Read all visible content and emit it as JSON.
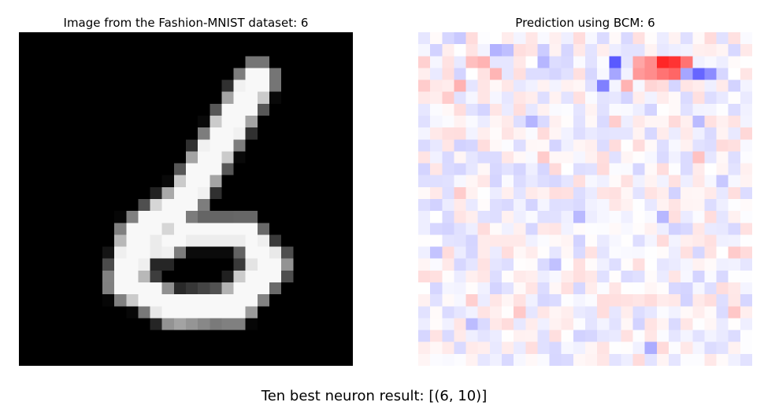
{
  "left_panel": {
    "title": "Image from the Fashion-MNIST dataset: 6",
    "image_size": 28,
    "colormap": "gray",
    "strokes": [
      {
        "from": [
          20,
          4
        ],
        "to": [
          14,
          14
        ],
        "w": 1.55
      },
      {
        "from": [
          14,
          14
        ],
        "to": [
          10,
          17
        ],
        "w": 1.5
      },
      {
        "from": [
          10,
          17
        ],
        "to": [
          9,
          21
        ],
        "w": 1.6
      },
      {
        "from": [
          9,
          21
        ],
        "to": [
          13,
          23.3
        ],
        "w": 1.4
      },
      {
        "from": [
          13,
          23.3
        ],
        "to": [
          18,
          23
        ],
        "w": 1.4
      },
      {
        "from": [
          18,
          23
        ],
        "to": [
          21,
          19.5
        ],
        "w": 1.6
      },
      {
        "from": [
          21,
          19.5
        ],
        "to": [
          19,
          16.8
        ],
        "w": 1.3
      },
      {
        "from": [
          19,
          16.8
        ],
        "to": [
          14,
          16.8
        ],
        "w": 1.2
      },
      {
        "from": [
          14,
          16.8
        ],
        "to": [
          12,
          18
        ],
        "w": 1.2
      }
    ],
    "hole": {
      "cx": 14.5,
      "cy": 19.7,
      "rx": 3.0,
      "ry": 1.4
    }
  },
  "right_panel": {
    "title": "Prediction using BCM: 6",
    "grid_size": 28,
    "colormap": "bwr",
    "noise_seed": 7,
    "hotspots": [
      {
        "x": 20,
        "y": 2,
        "v": 0.85
      },
      {
        "x": 21,
        "y": 2,
        "v": 0.8
      },
      {
        "x": 20,
        "y": 3,
        "v": 0.55
      },
      {
        "x": 21,
        "y": 3,
        "v": 0.6
      },
      {
        "x": 22,
        "y": 2,
        "v": 0.55
      },
      {
        "x": 19,
        "y": 2,
        "v": 0.45
      },
      {
        "x": 18,
        "y": 3,
        "v": 0.4
      },
      {
        "x": 19,
        "y": 3,
        "v": 0.45
      },
      {
        "x": 18,
        "y": 2,
        "v": 0.35
      },
      {
        "x": 17,
        "y": 4,
        "v": 0.3
      },
      {
        "x": 16,
        "y": 2,
        "v": -0.65
      },
      {
        "x": 16,
        "y": 3,
        "v": -0.35
      },
      {
        "x": 15,
        "y": 4,
        "v": -0.5
      },
      {
        "x": 23,
        "y": 3,
        "v": -0.6
      },
      {
        "x": 24,
        "y": 3,
        "v": -0.45
      },
      {
        "x": 22,
        "y": 3,
        "v": -0.35
      },
      {
        "x": 5,
        "y": 2,
        "v": 0.3
      },
      {
        "x": 4,
        "y": 2,
        "v": 0.25
      },
      {
        "x": 0,
        "y": 4,
        "v": 0.2
      },
      {
        "x": 2,
        "y": 5,
        "v": 0.2
      },
      {
        "x": 6,
        "y": 1,
        "v": -0.3
      },
      {
        "x": 7,
        "y": 1,
        "v": -0.25
      },
      {
        "x": 10,
        "y": 1,
        "v": -0.2
      }
    ]
  },
  "footer": {
    "caption": "Ten best neuron result: [(6, 10)]"
  }
}
